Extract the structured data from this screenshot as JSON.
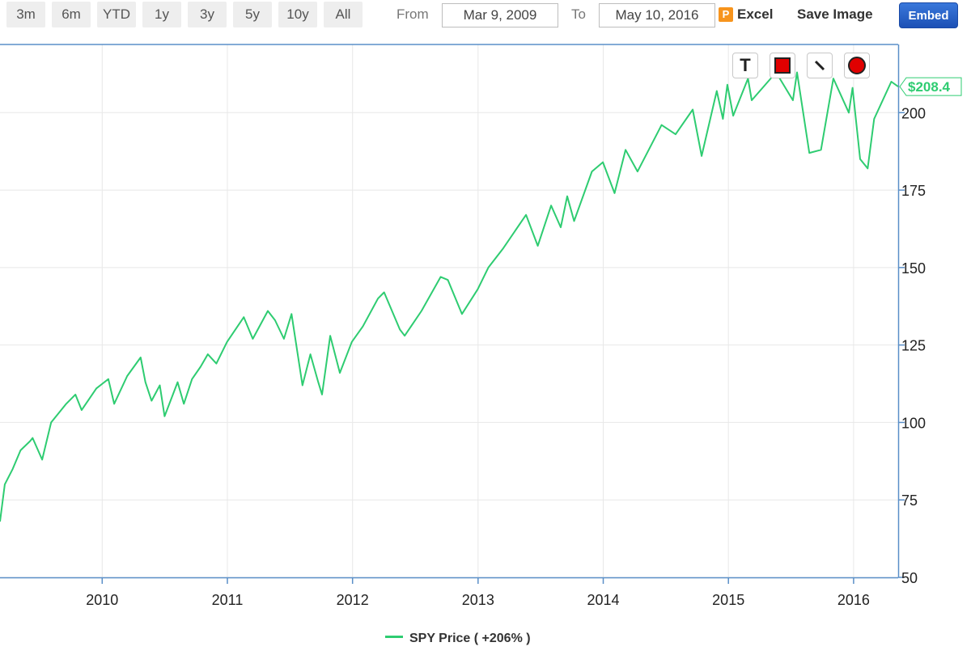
{
  "toolbar": {
    "ranges": [
      "3m",
      "6m",
      "YTD",
      "1y",
      "3y",
      "5y",
      "10y",
      "All"
    ],
    "from_label": "From",
    "from_value": "Mar 9, 2009",
    "to_label": "To",
    "to_value": "May 10, 2016",
    "excel_icon": "P",
    "excel_label": "Excel",
    "save_label": "Save Image",
    "embed_label": "Embed"
  },
  "drawing_tools": [
    {
      "name": "text-tool-icon",
      "glyph": "T"
    },
    {
      "name": "rectangle-tool-icon"
    },
    {
      "name": "line-tool-icon"
    },
    {
      "name": "circle-tool-icon"
    }
  ],
  "colors": {
    "series": "#2ecc71",
    "axis": "#5a8fc8",
    "grid": "#e8e8e8",
    "price_tag": "#2ecc71"
  },
  "chart_data": {
    "type": "line",
    "title": "",
    "xlabel": "",
    "ylabel": "",
    "x_ticks": [
      "2010",
      "2011",
      "2012",
      "2013",
      "2014",
      "2015",
      "2016"
    ],
    "y_ticks": [
      50,
      75,
      100,
      125,
      150,
      175,
      200
    ],
    "ylim": [
      50,
      222
    ],
    "x_range": [
      "2009-03-09",
      "2016-05-10"
    ],
    "last_price_label": "$208.4",
    "grid": true,
    "legend_position": "bottom-center",
    "series": [
      {
        "name": "SPY Price ( +206% )",
        "color": "#2ecc71",
        "points": [
          [
            "2009-03-09",
            68
          ],
          [
            "2009-03-23",
            80
          ],
          [
            "2009-04-15",
            85
          ],
          [
            "2009-05-08",
            91
          ],
          [
            "2009-06-05",
            94
          ],
          [
            "2009-06-12",
            95
          ],
          [
            "2009-07-10",
            88
          ],
          [
            "2009-08-05",
            100
          ],
          [
            "2009-09-18",
            106
          ],
          [
            "2009-10-15",
            109
          ],
          [
            "2009-11-02",
            104
          ],
          [
            "2009-12-15",
            111
          ],
          [
            "2010-01-19",
            114
          ],
          [
            "2010-02-05",
            106
          ],
          [
            "2010-03-15",
            115
          ],
          [
            "2010-04-23",
            121
          ],
          [
            "2010-05-07",
            113
          ],
          [
            "2010-05-25",
            107
          ],
          [
            "2010-06-18",
            112
          ],
          [
            "2010-07-02",
            102
          ],
          [
            "2010-08-09",
            113
          ],
          [
            "2010-08-27",
            106
          ],
          [
            "2010-09-20",
            114
          ],
          [
            "2010-10-15",
            118
          ],
          [
            "2010-11-05",
            122
          ],
          [
            "2010-11-30",
            119
          ],
          [
            "2010-12-31",
            126
          ],
          [
            "2011-02-18",
            134
          ],
          [
            "2011-03-16",
            127
          ],
          [
            "2011-04-29",
            136
          ],
          [
            "2011-05-20",
            133
          ],
          [
            "2011-06-15",
            127
          ],
          [
            "2011-07-07",
            135
          ],
          [
            "2011-08-08",
            112
          ],
          [
            "2011-08-31",
            122
          ],
          [
            "2011-09-23",
            113
          ],
          [
            "2011-10-04",
            109
          ],
          [
            "2011-10-28",
            128
          ],
          [
            "2011-11-25",
            116
          ],
          [
            "2011-12-30",
            126
          ],
          [
            "2012-01-31",
            131
          ],
          [
            "2012-03-15",
            140
          ],
          [
            "2012-04-02",
            142
          ],
          [
            "2012-05-18",
            130
          ],
          [
            "2012-06-01",
            128
          ],
          [
            "2012-07-20",
            136
          ],
          [
            "2012-09-14",
            147
          ],
          [
            "2012-10-05",
            146
          ],
          [
            "2012-11-15",
            135
          ],
          [
            "2012-12-31",
            143
          ],
          [
            "2013-01-31",
            150
          ],
          [
            "2013-03-14",
            156
          ],
          [
            "2013-05-21",
            167
          ],
          [
            "2013-06-24",
            157
          ],
          [
            "2013-08-02",
            170
          ],
          [
            "2013-08-30",
            163
          ],
          [
            "2013-09-18",
            173
          ],
          [
            "2013-10-08",
            165
          ],
          [
            "2013-11-29",
            181
          ],
          [
            "2013-12-31",
            184
          ],
          [
            "2014-02-03",
            174
          ],
          [
            "2014-03-07",
            188
          ],
          [
            "2014-04-11",
            181
          ],
          [
            "2014-06-20",
            196
          ],
          [
            "2014-07-31",
            193
          ],
          [
            "2014-09-19",
            201
          ],
          [
            "2014-10-15",
            186
          ],
          [
            "2014-11-28",
            207
          ],
          [
            "2014-12-16",
            198
          ],
          [
            "2014-12-29",
            209
          ],
          [
            "2015-01-15",
            199
          ],
          [
            "2015-02-27",
            211
          ],
          [
            "2015-03-10",
            204
          ],
          [
            "2015-05-20",
            213
          ],
          [
            "2015-07-08",
            204
          ],
          [
            "2015-07-20",
            213
          ],
          [
            "2015-08-25",
            187
          ],
          [
            "2015-09-28",
            188
          ],
          [
            "2015-11-03",
            211
          ],
          [
            "2015-12-18",
            200
          ],
          [
            "2015-12-29",
            208
          ],
          [
            "2016-01-20",
            185
          ],
          [
            "2016-02-11",
            182
          ],
          [
            "2016-03-01",
            198
          ],
          [
            "2016-04-20",
            210
          ],
          [
            "2016-05-10",
            208.4
          ]
        ]
      }
    ]
  }
}
